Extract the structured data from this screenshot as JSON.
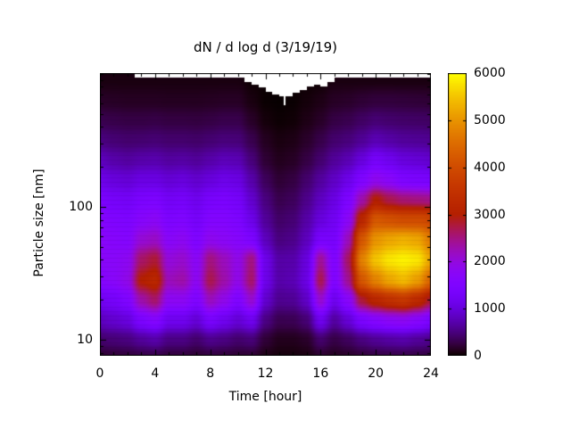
{
  "window": {
    "background": "#ffffff"
  },
  "chart_data": {
    "type": "heatmap",
    "title": "dN / d log d (3/19/19)",
    "xlabel": "Time [hour]",
    "ylabel": "Particle size [nm]",
    "x_range": [
      0,
      24
    ],
    "y_range_nm": [
      7.6,
      1016
    ],
    "y_scale": "log",
    "x_ticks_major": [
      0,
      4,
      8,
      12,
      16,
      20,
      24
    ],
    "x_minor_step": 1,
    "y_ticks_major": [
      10,
      100
    ],
    "y_ticks_minor": [
      8,
      9,
      20,
      30,
      40,
      50,
      60,
      70,
      80,
      90,
      200,
      300,
      400,
      500,
      600,
      700,
      800,
      900,
      1000
    ],
    "grid": false,
    "legend": "colorbar-right",
    "colorbar": {
      "min": 0,
      "max": 6000,
      "ticks": [
        0,
        1000,
        2000,
        3000,
        4000,
        5000,
        6000
      ],
      "palette": "gnuplot"
    },
    "colors": {
      "background": "#ffffff",
      "text": "#000000",
      "frame": "#000000",
      "nodata": "#ffffff"
    },
    "x_hours": [
      0,
      1,
      2,
      3,
      4,
      5,
      6,
      7,
      8,
      9,
      10,
      11,
      12,
      13,
      14,
      15,
      16,
      17,
      18,
      19,
      20,
      21,
      22,
      23,
      24
    ],
    "y_sizes_nm": [
      900,
      630,
      450,
      320,
      225,
      160,
      113,
      80,
      57,
      40,
      28,
      20,
      14,
      10,
      7.6
    ],
    "values": [
      [
        60,
        60,
        60,
        60,
        60,
        60,
        60,
        60,
        60,
        60,
        60,
        15,
        15,
        15,
        15,
        15,
        15,
        60,
        60,
        60,
        60,
        60,
        60,
        60,
        60
      ],
      [
        150,
        140,
        130,
        130,
        130,
        120,
        120,
        120,
        130,
        140,
        140,
        60,
        10,
        5,
        10,
        40,
        80,
        140,
        160,
        200,
        230,
        230,
        220,
        210,
        200
      ],
      [
        300,
        280,
        260,
        260,
        270,
        250,
        250,
        240,
        260,
        290,
        290,
        150,
        40,
        15,
        25,
        80,
        150,
        260,
        300,
        380,
        450,
        420,
        400,
        390,
        380
      ],
      [
        500,
        450,
        420,
        430,
        450,
        420,
        420,
        400,
        440,
        480,
        470,
        300,
        120,
        60,
        80,
        160,
        280,
        420,
        480,
        600,
        750,
        680,
        620,
        600,
        580
      ],
      [
        800,
        700,
        650,
        700,
        720,
        650,
        670,
        620,
        700,
        780,
        750,
        480,
        200,
        110,
        140,
        260,
        430,
        620,
        750,
        1000,
        1300,
        1150,
        1000,
        950,
        900
      ],
      [
        1100,
        1000,
        950,
        1050,
        1050,
        950,
        1000,
        900,
        1000,
        1100,
        1050,
        700,
        350,
        200,
        250,
        420,
        640,
        850,
        1100,
        1500,
        1850,
        1700,
        1450,
        1400,
        1350
      ],
      [
        1400,
        1300,
        1250,
        1400,
        1450,
        1250,
        1300,
        1150,
        1350,
        1400,
        1300,
        900,
        500,
        300,
        350,
        550,
        820,
        1050,
        1450,
        2300,
        3000,
        2700,
        2550,
        2500,
        2450
      ],
      [
        1600,
        1500,
        1450,
        1650,
        1750,
        1450,
        1500,
        1300,
        1550,
        1550,
        1450,
        1100,
        620,
        400,
        450,
        680,
        1000,
        1200,
        1750,
        3200,
        4200,
        4100,
        4000,
        4000,
        3900
      ],
      [
        1700,
        1650,
        1600,
        2050,
        2150,
        1700,
        1800,
        1500,
        1850,
        1750,
        1650,
        1450,
        800,
        500,
        550,
        800,
        1350,
        1350,
        2200,
        4200,
        5000,
        5200,
        5300,
        5200,
        4700
      ],
      [
        1700,
        1700,
        1800,
        2600,
        2800,
        2000,
        2100,
        1750,
        2500,
        2200,
        1900,
        2500,
        1100,
        680,
        700,
        1000,
        2400,
        1500,
        2600,
        4800,
        5500,
        5800,
        5900,
        5800,
        5200
      ],
      [
        1600,
        1700,
        1900,
        3000,
        3200,
        2200,
        2300,
        1800,
        2700,
        2300,
        1900,
        2600,
        1100,
        700,
        750,
        1050,
        2700,
        1500,
        2400,
        4200,
        4800,
        5200,
        5400,
        5100,
        4400
      ],
      [
        1200,
        1300,
        1500,
        2300,
        2600,
        1800,
        1800,
        1500,
        2200,
        1900,
        1500,
        2100,
        900,
        580,
        600,
        850,
        2100,
        1150,
        1700,
        2800,
        3200,
        3450,
        3600,
        3300,
        2800
      ],
      [
        800,
        900,
        1000,
        1400,
        1600,
        1150,
        1150,
        950,
        1350,
        1150,
        950,
        1150,
        520,
        310,
        320,
        450,
        1150,
        650,
        950,
        1400,
        1600,
        1750,
        1800,
        1650,
        1400
      ],
      [
        420,
        460,
        500,
        620,
        700,
        520,
        520,
        420,
        560,
        510,
        420,
        470,
        210,
        110,
        110,
        160,
        420,
        270,
        360,
        500,
        600,
        660,
        700,
        620,
        560
      ],
      [
        200,
        220,
        240,
        280,
        300,
        240,
        240,
        200,
        250,
        230,
        200,
        210,
        90,
        50,
        50,
        70,
        190,
        130,
        170,
        230,
        270,
        290,
        300,
        280,
        260
      ]
    ],
    "nodata_segments": [
      [
        2.5,
        24,
        940
      ],
      [
        10.5,
        11,
        870
      ],
      [
        11,
        11.5,
        830
      ],
      [
        11.5,
        12,
        790
      ],
      [
        12,
        12.5,
        730
      ],
      [
        12.5,
        13,
        700
      ],
      [
        13,
        13.3,
        680
      ],
      [
        13.3,
        13.45,
        580
      ],
      [
        13.45,
        14,
        680
      ],
      [
        14,
        14.5,
        720
      ],
      [
        14.5,
        15,
        760
      ],
      [
        15,
        15.5,
        800
      ],
      [
        15.5,
        16,
        830
      ],
      [
        16,
        16.5,
        800
      ],
      [
        16.5,
        17,
        870
      ]
    ]
  }
}
